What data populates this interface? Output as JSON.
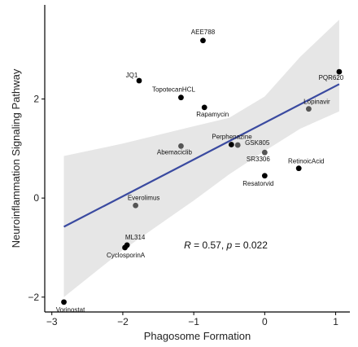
{
  "chart_data": {
    "type": "scatter",
    "title": "",
    "xlabel": "Phagosome Formation",
    "ylabel": "Neuroinflammation Signaling Pathway",
    "xlim": [
      -3.1,
      1.2
    ],
    "ylim": [
      -2.3,
      3.9
    ],
    "xticks": [
      -3,
      -2,
      -1,
      0,
      1
    ],
    "yticks": [
      -2,
      0,
      2
    ],
    "xtick_labels": [
      "−3",
      "−2",
      "−1",
      "0",
      "1"
    ],
    "ytick_labels": [
      "−2",
      "0",
      "2"
    ],
    "grid": false,
    "regression": {
      "line_color": "#3a4aa0",
      "band_color": "#e6e6e6",
      "line": [
        [
          -2.83,
          -0.58
        ],
        [
          1.05,
          2.3
        ]
      ],
      "band_upper": [
        [
          -2.83,
          0.85
        ],
        [
          -2.0,
          1.1
        ],
        [
          -1.0,
          1.45
        ],
        [
          -0.5,
          1.62
        ],
        [
          0.0,
          2.05
        ],
        [
          0.5,
          2.85
        ],
        [
          1.05,
          3.6
        ]
      ],
      "band_lower": [
        [
          -2.83,
          -2.0
        ],
        [
          -2.0,
          -1.05
        ],
        [
          -1.0,
          -0.05
        ],
        [
          -0.5,
          0.48
        ],
        [
          0.0,
          0.95
        ],
        [
          0.5,
          1.4
        ],
        [
          1.05,
          1.75
        ]
      ]
    },
    "annotation": {
      "r_symbol": "R",
      "r_rest": " = 0.57, ",
      "p_symbol": "p",
      "p_rest": " = 0.022",
      "x": -1.0,
      "y": -0.95
    },
    "points": [
      {
        "name": "AEE788",
        "x": -0.87,
        "y": 3.18,
        "color": "#000000"
      },
      {
        "name": "JQ1",
        "x": -1.77,
        "y": 2.37,
        "color": "#000000"
      },
      {
        "name": "TopotecanHCL",
        "x": -1.18,
        "y": 2.03,
        "color": "#000000"
      },
      {
        "name": "Rapamycin",
        "x": -0.85,
        "y": 1.83,
        "color": "#000000"
      },
      {
        "name": "PQR620",
        "x": 1.05,
        "y": 2.55,
        "color": "#000000"
      },
      {
        "name": "Lopinavir",
        "x": 0.62,
        "y": 1.8,
        "color": "#555555"
      },
      {
        "name": "Perphenazine",
        "x": -0.47,
        "y": 1.08,
        "color": "#000000"
      },
      {
        "name": "Abemaciclib",
        "x": -1.18,
        "y": 1.05,
        "color": "#555555"
      },
      {
        "name": "GSK805",
        "x": -0.38,
        "y": 1.07,
        "color": "#555555"
      },
      {
        "name": "SR3306",
        "x": 0.0,
        "y": 0.92,
        "color": "#555555"
      },
      {
        "name": "RetinoicAcid",
        "x": 0.48,
        "y": 0.6,
        "color": "#000000"
      },
      {
        "name": "Resatorvid",
        "x": 0.0,
        "y": 0.45,
        "color": "#000000"
      },
      {
        "name": "Everolimus",
        "x": -1.82,
        "y": -0.15,
        "color": "#555555"
      },
      {
        "name": "ML314",
        "x": -1.94,
        "y": -0.95,
        "color": "#000000"
      },
      {
        "name": "CyclosporinA",
        "x": -1.97,
        "y": -1.0,
        "color": "#000000"
      },
      {
        "name": "Vorinostat",
        "x": -2.83,
        "y": -2.1,
        "color": "#000000"
      }
    ]
  }
}
